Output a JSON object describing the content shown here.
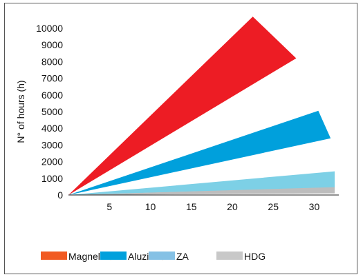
{
  "chart_data": {
    "type": "area",
    "title": "",
    "xlabel": "",
    "ylabel": "N° of hours (h)",
    "xlim": [
      0,
      33
    ],
    "ylim": [
      0,
      10000
    ],
    "x_ticks": [
      5,
      10,
      15,
      20,
      25,
      30
    ],
    "y_ticks": [
      0,
      1000,
      2000,
      3000,
      4000,
      5000,
      6000,
      7000,
      8000,
      9000,
      10000
    ],
    "grid": false,
    "legend_position": "bottom",
    "origin": [
      0,
      0
    ],
    "series": [
      {
        "name": "Magnelis®",
        "color": "#ED1C24",
        "legend_color": "#F15A22",
        "band_end": [
          {
            "x": 22.5,
            "y": 10700
          },
          {
            "x": 27.8,
            "y": 8200
          }
        ]
      },
      {
        "name": "Aluzinc®",
        "color": "#00A0DC",
        "legend_color": "#00A0DC",
        "band_end": [
          {
            "x": 30.5,
            "y": 5050
          },
          {
            "x": 32,
            "y": 3400
          }
        ]
      },
      {
        "name": "ZA",
        "color": "#7DD0E6",
        "legend_color": "#85C1E5",
        "band_end": [
          {
            "x": 32.5,
            "y": 1420
          },
          {
            "x": 32.5,
            "y": 450
          }
        ]
      },
      {
        "name": "HDG",
        "color": "#BDBDBD",
        "legend_color": "#C8C8C8",
        "band_end": [
          {
            "x": 32.5,
            "y": 470
          },
          {
            "x": 32.5,
            "y": 100
          }
        ]
      }
    ]
  }
}
